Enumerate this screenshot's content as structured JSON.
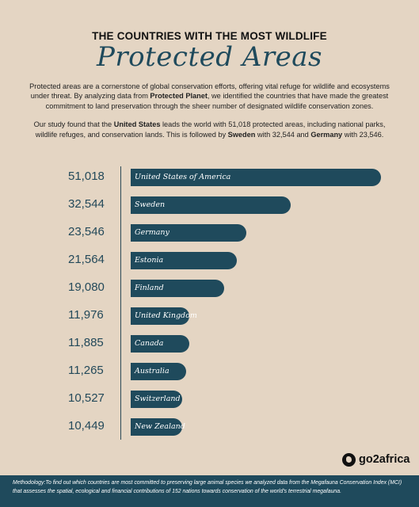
{
  "header": {
    "kicker": "THE COUNTRIES WITH THE MOST WILDLIFE",
    "title": "Protected Areas"
  },
  "intro": {
    "p1_a": "Protected areas are a cornerstone of global conservation efforts, offering vital refuge for wildlife and ecosystems under threat. By analyzing data from ",
    "p1_b": "Protected Planet",
    "p1_c": ", we identified the countries that have made the greatest commitment to land preservation through the sheer number of designated wildlife conservation zones.",
    "p2_a": "Our study found that the ",
    "p2_b": "United States",
    "p2_c": " leads the world with 51,018 protected areas, including national parks, wildlife refuges, and conservation lands. This is followed by ",
    "p2_d": "Sweden",
    "p2_e": " with 32,544 and ",
    "p2_f": "Germany",
    "p2_g": " with 23,546."
  },
  "chart_data": {
    "type": "bar",
    "orientation": "horizontal",
    "categories": [
      "United States of America",
      "Sweden",
      "Germany",
      "Estonia",
      "Finland",
      "United Kingdom",
      "Canada",
      "Australia",
      "Switzerland",
      "New Zealand"
    ],
    "values": [
      51018,
      32544,
      23546,
      21564,
      19080,
      11976,
      11885,
      11265,
      10527,
      10449
    ],
    "value_labels": [
      "51,018",
      "32,544",
      "23,546",
      "21,564",
      "19,080",
      "11,976",
      "11,885",
      "11,265",
      "10,527",
      "10,449"
    ],
    "bar_color": "#1f4a5c",
    "grid": false
  },
  "brand": {
    "name": "go2africa",
    "icon": "go2africa-logo-icon"
  },
  "footer": {
    "methodology": "Methodology:To find out which countries are most committed to preserving large animal species we analyzed data from the Megafauna Conservation Index (MCI) that assesses the spatial, ecological and financial contributions of 152 nations towards conservation of the world's terrestrial megafauna."
  },
  "colors": {
    "background": "#e4d5c3",
    "accent": "#1f4a5c"
  }
}
